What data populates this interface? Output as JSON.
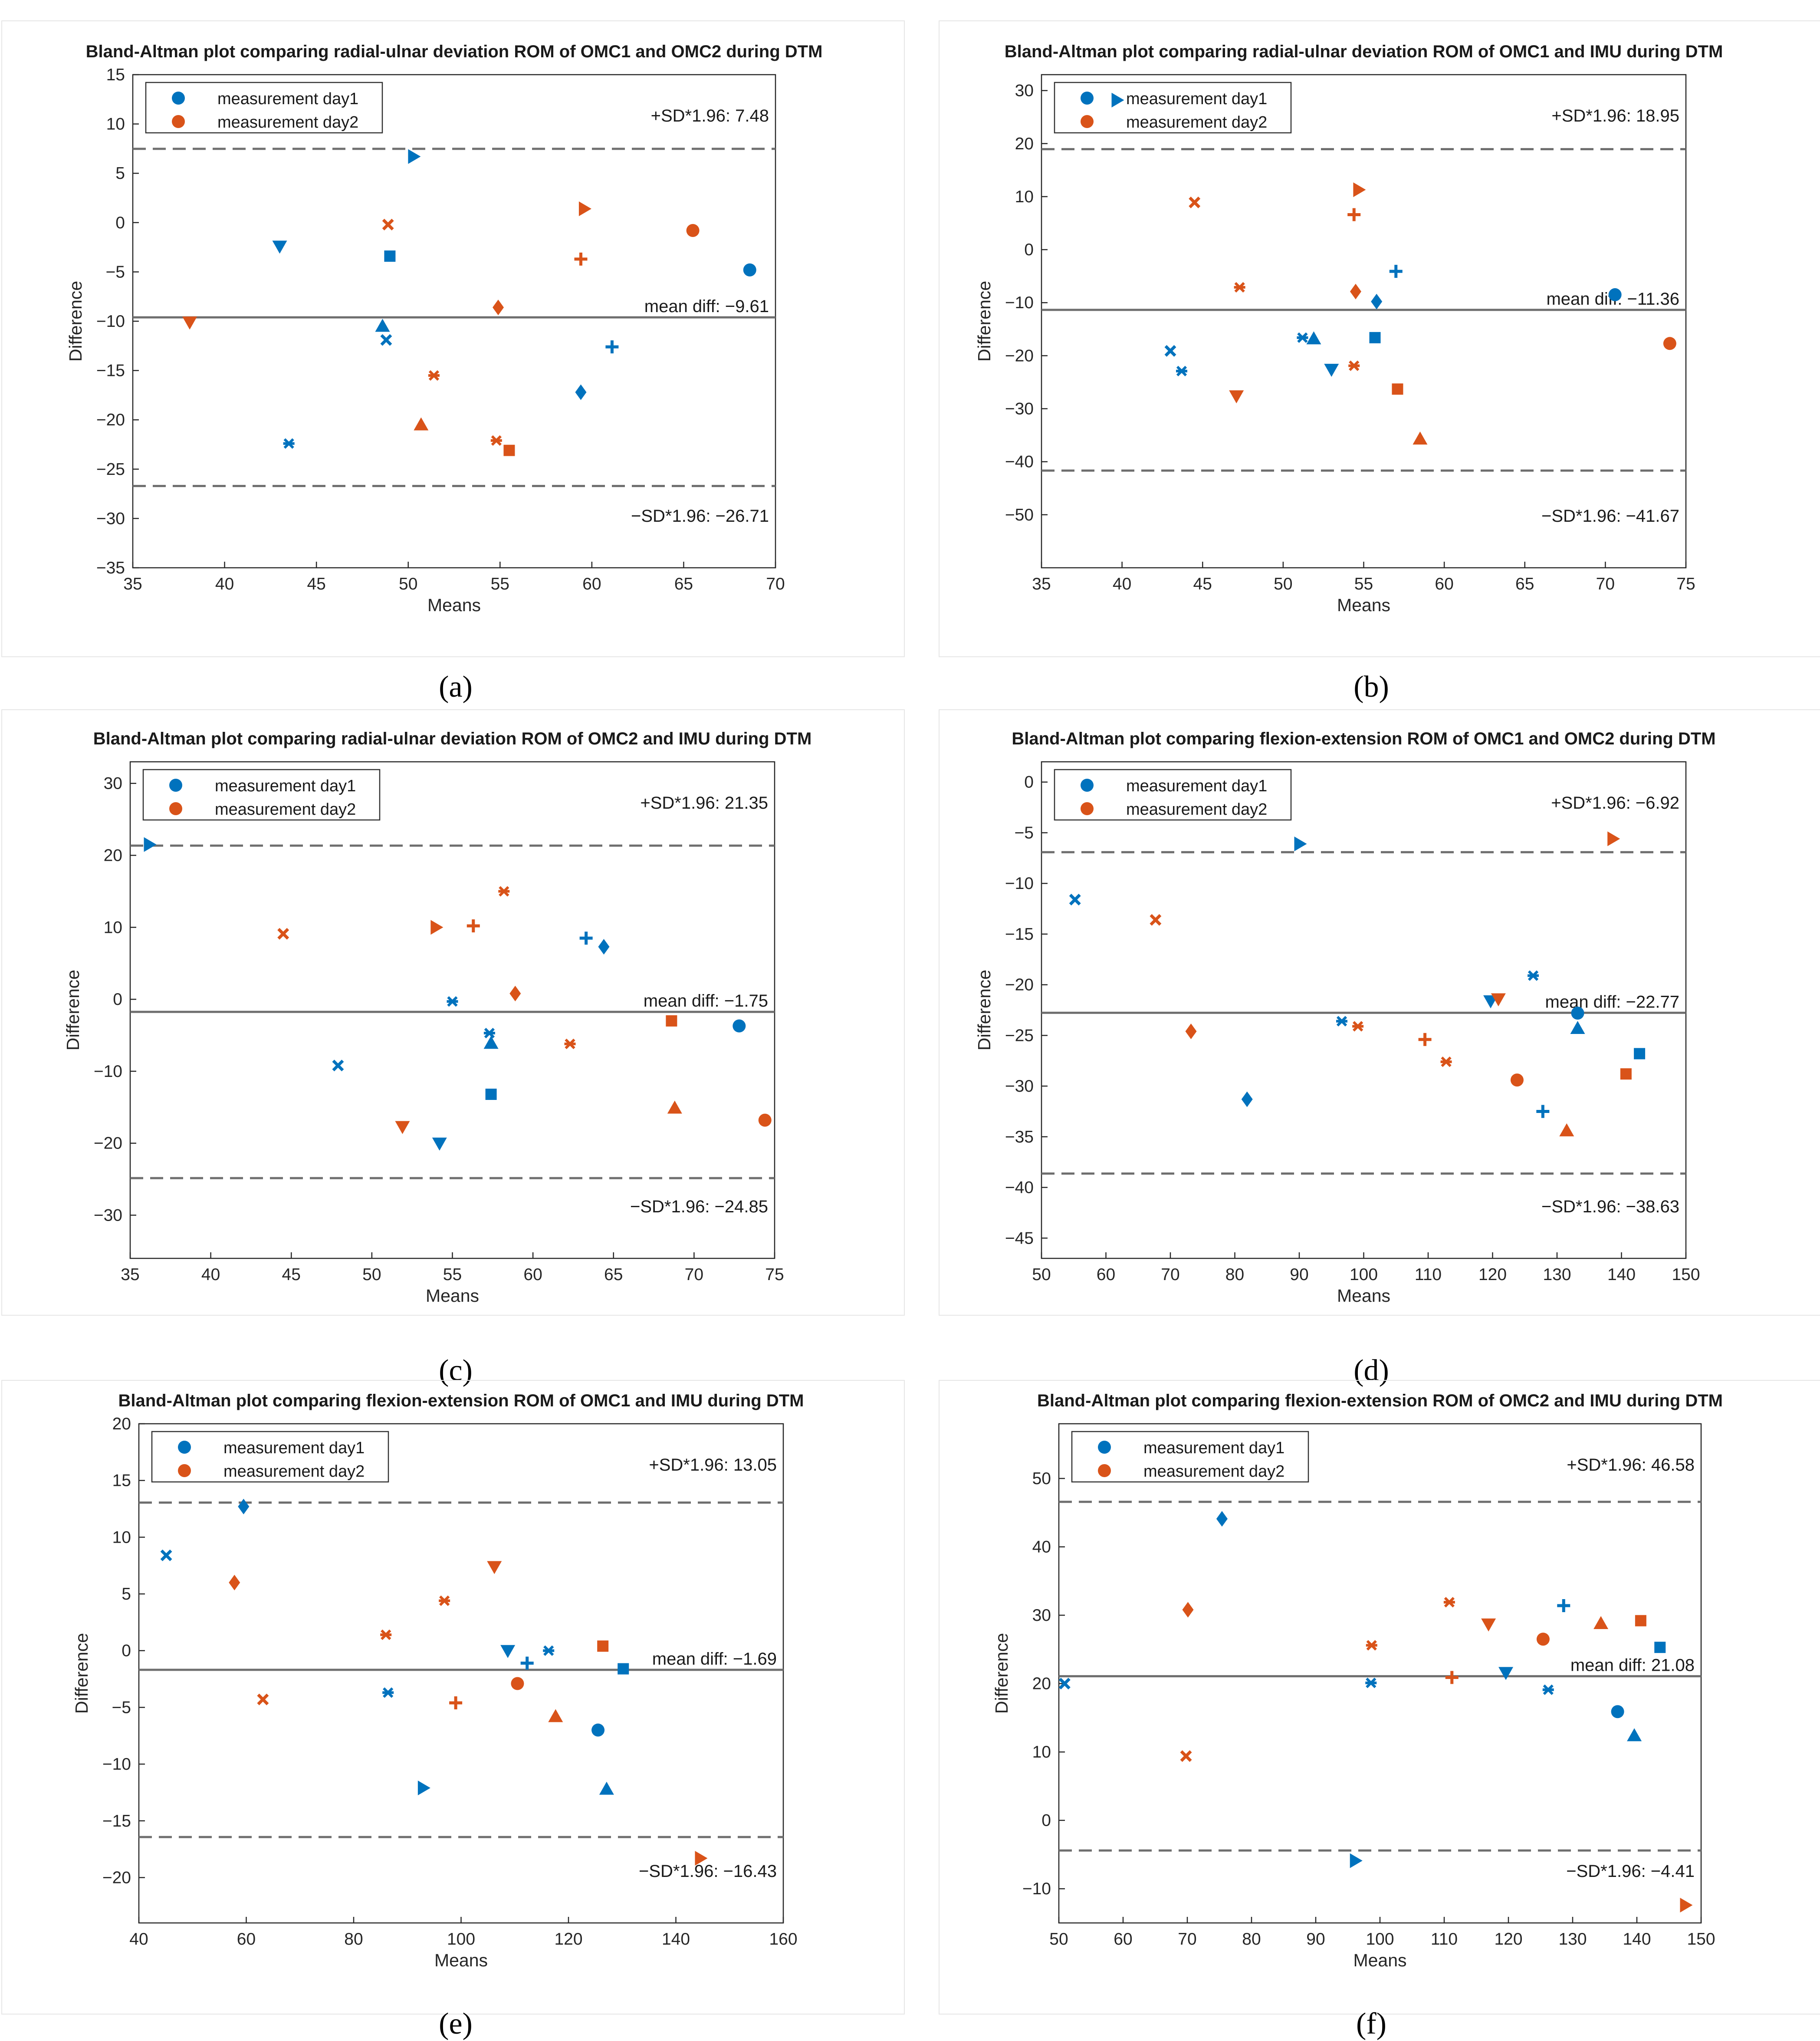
{
  "colors": {
    "day1": "#0072BD",
    "day2": "#D95319",
    "line": "#6e6e6e",
    "axis": "#262626"
  },
  "legend": {
    "day1": "measurement day1",
    "day2": "measurement day2"
  },
  "xlabel": "Means",
  "ylabel": "Difference",
  "chart_data": [
    {
      "id": "a",
      "caption": "(a)",
      "type": "scatter",
      "title": "Bland-Altman plot comparing radial-ulnar deviation ROM of OMC1 and OMC2 during DTM",
      "xlim": [
        35,
        70
      ],
      "ylim": [
        -35,
        15
      ],
      "xticks": [
        35,
        40,
        45,
        50,
        55,
        60,
        65,
        70
      ],
      "yticks": [
        15,
        10,
        5,
        0,
        -5,
        -10,
        -15,
        -20,
        -25,
        -30,
        -35
      ],
      "upper_label": "+SD*1.96: 7.48",
      "upper": 7.48,
      "mean_label": "mean diff: −9.61",
      "mean": -9.61,
      "lower_label": "−SD*1.96: −26.71",
      "lower": -26.71,
      "series": [
        {
          "name": "measurement day1",
          "points": [
            {
              "x": 68.6,
              "y": -4.8,
              "m": "o"
            },
            {
              "x": 49.0,
              "y": -3.4,
              "m": "s"
            },
            {
              "x": 59.4,
              "y": -17.2,
              "m": "d"
            },
            {
              "x": 61.1,
              "y": -12.6,
              "m": "+"
            },
            {
              "x": 48.8,
              "y": -11.9,
              "m": "x"
            },
            {
              "x": 43.5,
              "y": -22.4,
              "m": "*"
            },
            {
              "x": 48.6,
              "y": -10.5,
              "m": "^"
            },
            {
              "x": 43.0,
              "y": -2.4,
              "m": "v"
            },
            {
              "x": 50.3,
              "y": 6.7,
              "m": ">"
            }
          ]
        },
        {
          "name": "measurement day2",
          "points": [
            {
              "x": 65.5,
              "y": -0.8,
              "m": "o"
            },
            {
              "x": 55.5,
              "y": -23.1,
              "m": "s"
            },
            {
              "x": 54.9,
              "y": -8.6,
              "m": "d"
            },
            {
              "x": 59.4,
              "y": -3.7,
              "m": "+"
            },
            {
              "x": 48.9,
              "y": -0.2,
              "m": "x"
            },
            {
              "x": 51.4,
              "y": -15.5,
              "m": "*"
            },
            {
              "x": 50.7,
              "y": -20.5,
              "m": "^"
            },
            {
              "x": 38.1,
              "y": -10.1,
              "m": "v"
            },
            {
              "x": 59.6,
              "y": 1.4,
              "m": ">"
            },
            {
              "x": 54.8,
              "y": -22.1,
              "m": "*"
            }
          ]
        }
      ]
    },
    {
      "id": "b",
      "caption": "(b)",
      "type": "scatter",
      "title": "Bland-Altman plot comparing radial-ulnar deviation ROM of OMC1 and IMU during DTM",
      "xlim": [
        35,
        75
      ],
      "ylim": [
        -60,
        33
      ],
      "xticks": [
        35,
        40,
        45,
        50,
        55,
        60,
        65,
        70,
        75
      ],
      "yticks": [
        30,
        20,
        10,
        0,
        -10,
        -20,
        -30,
        -40,
        -50
      ],
      "upper_label": "+SD*1.96: 18.95",
      "upper": 18.95,
      "mean_label": "mean diff: −11.36",
      "mean": -11.36,
      "lower_label": "−SD*1.96: −41.67",
      "lower": -41.67,
      "series": [
        {
          "name": "measurement day1",
          "points": [
            {
              "x": 70.6,
              "y": -8.5,
              "m": "o"
            },
            {
              "x": 55.7,
              "y": -16.6,
              "m": "s"
            },
            {
              "x": 55.8,
              "y": -9.8,
              "m": "d"
            },
            {
              "x": 57.0,
              "y": -4.1,
              "m": "+"
            },
            {
              "x": 43.0,
              "y": -19.1,
              "m": "x"
            },
            {
              "x": 43.7,
              "y": -22.9,
              "m": "*"
            },
            {
              "x": 51.9,
              "y": -16.8,
              "m": "^"
            },
            {
              "x": 53.0,
              "y": -22.6,
              "m": "v"
            },
            {
              "x": 39.7,
              "y": 28.2,
              "m": ">"
            },
            {
              "x": 51.2,
              "y": -16.6,
              "m": "*"
            }
          ]
        },
        {
          "name": "measurement day2",
          "points": [
            {
              "x": 74.0,
              "y": -17.7,
              "m": "o"
            },
            {
              "x": 57.1,
              "y": -26.3,
              "m": "s"
            },
            {
              "x": 54.5,
              "y": -7.9,
              "m": "d"
            },
            {
              "x": 54.4,
              "y": 6.6,
              "m": "+"
            },
            {
              "x": 44.5,
              "y": 8.9,
              "m": "x"
            },
            {
              "x": 47.3,
              "y": -7.1,
              "m": "*"
            },
            {
              "x": 58.5,
              "y": -35.7,
              "m": "^"
            },
            {
              "x": 47.1,
              "y": -27.6,
              "m": "v"
            },
            {
              "x": 54.7,
              "y": 11.3,
              "m": ">"
            },
            {
              "x": 54.4,
              "y": -21.9,
              "m": "*"
            }
          ]
        }
      ]
    },
    {
      "id": "c",
      "caption": "(c)",
      "type": "scatter",
      "title": "Bland-Altman plot comparing radial-ulnar deviation ROM of OMC2 and IMU during DTM",
      "xlim": [
        35,
        75
      ],
      "ylim": [
        -36,
        33
      ],
      "xticks": [
        35,
        40,
        45,
        50,
        55,
        60,
        65,
        70,
        75
      ],
      "yticks": [
        30,
        20,
        10,
        0,
        -10,
        -20,
        -30
      ],
      "upper_label": "+SD*1.96: 21.35",
      "upper": 21.35,
      "mean_label": "mean diff: −1.75",
      "mean": -1.75,
      "lower_label": "−SD*1.96: −24.85",
      "lower": -24.85,
      "series": [
        {
          "name": "measurement day1",
          "points": [
            {
              "x": 72.8,
              "y": -3.7,
              "m": "o"
            },
            {
              "x": 57.4,
              "y": -13.2,
              "m": "s"
            },
            {
              "x": 64.4,
              "y": 7.3,
              "m": "d"
            },
            {
              "x": 63.3,
              "y": 8.5,
              "m": "+"
            },
            {
              "x": 47.9,
              "y": -9.2,
              "m": "x"
            },
            {
              "x": 55.0,
              "y": -0.3,
              "m": "*"
            },
            {
              "x": 57.4,
              "y": -6.1,
              "m": "^"
            },
            {
              "x": 54.2,
              "y": -20.0,
              "m": "v"
            },
            {
              "x": 36.2,
              "y": 21.5,
              "m": ">"
            },
            {
              "x": 57.3,
              "y": -4.7,
              "m": "*"
            }
          ]
        },
        {
          "name": "measurement day2",
          "points": [
            {
              "x": 74.4,
              "y": -16.8,
              "m": "o"
            },
            {
              "x": 68.6,
              "y": -3.0,
              "m": "s"
            },
            {
              "x": 58.9,
              "y": 0.8,
              "m": "d"
            },
            {
              "x": 56.3,
              "y": 10.2,
              "m": "+"
            },
            {
              "x": 44.5,
              "y": 9.1,
              "m": "x"
            },
            {
              "x": 58.2,
              "y": 15.0,
              "m": "*"
            },
            {
              "x": 68.8,
              "y": -15.1,
              "m": "^"
            },
            {
              "x": 51.9,
              "y": -17.7,
              "m": "v"
            },
            {
              "x": 54.0,
              "y": 10.0,
              "m": ">"
            },
            {
              "x": 62.3,
              "y": -6.2,
              "m": "*"
            }
          ]
        }
      ]
    },
    {
      "id": "d",
      "caption": "(d)",
      "type": "scatter",
      "title": "Bland-Altman plot comparing flexion-extension ROM of OMC1 and OMC2 during DTM",
      "xlim": [
        50,
        150
      ],
      "ylim": [
        -47,
        2
      ],
      "xticks": [
        50,
        60,
        70,
        80,
        90,
        100,
        110,
        120,
        130,
        140,
        150
      ],
      "yticks": [
        0,
        -5,
        -10,
        -15,
        -20,
        -25,
        -30,
        -35,
        -40,
        -45
      ],
      "upper_label": "+SD*1.96: −6.92",
      "upper": -6.92,
      "mean_label": "mean diff: −22.77",
      "mean": -22.77,
      "lower_label": "−SD*1.96: −38.63",
      "lower": -38.63,
      "series": [
        {
          "name": "measurement day1",
          "points": [
            {
              "x": 133.2,
              "y": -22.8,
              "m": "o"
            },
            {
              "x": 142.8,
              "y": -26.8,
              "m": "s"
            },
            {
              "x": 81.9,
              "y": -31.3,
              "m": "d"
            },
            {
              "x": 127.8,
              "y": -32.5,
              "m": "+"
            },
            {
              "x": 55.2,
              "y": -11.6,
              "m": "x"
            },
            {
              "x": 126.3,
              "y": -19.1,
              "m": "*"
            },
            {
              "x": 133.2,
              "y": -24.3,
              "m": "^"
            },
            {
              "x": 119.7,
              "y": -21.6,
              "m": "v"
            },
            {
              "x": 90.1,
              "y": -6.1,
              "m": ">"
            },
            {
              "x": 96.6,
              "y": -23.6,
              "m": "*"
            }
          ]
        },
        {
          "name": "measurement day2",
          "points": [
            {
              "x": 123.8,
              "y": -29.4,
              "m": "o"
            },
            {
              "x": 140.7,
              "y": -28.8,
              "m": "s"
            },
            {
              "x": 73.2,
              "y": -24.6,
              "m": "d"
            },
            {
              "x": 109.5,
              "y": -25.4,
              "m": "+"
            },
            {
              "x": 67.7,
              "y": -13.6,
              "m": "x"
            },
            {
              "x": 112.8,
              "y": -27.6,
              "m": "*"
            },
            {
              "x": 131.5,
              "y": -34.4,
              "m": "^"
            },
            {
              "x": 120.9,
              "y": -21.4,
              "m": "v"
            },
            {
              "x": 138.7,
              "y": -5.6,
              "m": ">"
            },
            {
              "x": 99.1,
              "y": -24.1,
              "m": "*"
            }
          ]
        }
      ]
    },
    {
      "id": "e",
      "caption": "(e)",
      "type": "scatter",
      "title": "Bland-Altman plot comparing flexion-extension ROM of OMC1 and IMU during DTM",
      "xlim": [
        40,
        160
      ],
      "ylim": [
        -24,
        20
      ],
      "xticks": [
        40,
        60,
        80,
        100,
        120,
        140,
        160
      ],
      "yticks": [
        20,
        15,
        10,
        5,
        0,
        -5,
        -10,
        -15,
        -20
      ],
      "upper_label": "+SD*1.96: 13.05",
      "upper": 13.05,
      "mean_label": "mean diff: −1.69",
      "mean": -1.69,
      "lower_label": "−SD*1.96: −16.43",
      "lower": -16.43,
      "series": [
        {
          "name": "measurement day1",
          "points": [
            {
              "x": 125.5,
              "y": -7.0,
              "m": "o"
            },
            {
              "x": 130.2,
              "y": -1.6,
              "m": "s"
            },
            {
              "x": 59.5,
              "y": 12.7,
              "m": "d"
            },
            {
              "x": 112.3,
              "y": -1.1,
              "m": "+"
            },
            {
              "x": 45.1,
              "y": 8.4,
              "m": "x"
            },
            {
              "x": 116.3,
              "y": 0.0,
              "m": "*"
            },
            {
              "x": 127.1,
              "y": -12.2,
              "m": "^"
            },
            {
              "x": 108.7,
              "y": 0.0,
              "m": "v"
            },
            {
              "x": 93.0,
              "y": -12.1,
              "m": ">"
            },
            {
              "x": 86.4,
              "y": -3.7,
              "m": "*"
            }
          ]
        },
        {
          "name": "measurement day2",
          "points": [
            {
              "x": 110.5,
              "y": -2.9,
              "m": "o"
            },
            {
              "x": 126.4,
              "y": 0.4,
              "m": "s"
            },
            {
              "x": 57.8,
              "y": 6.0,
              "m": "d"
            },
            {
              "x": 99.0,
              "y": -4.6,
              "m": "+"
            },
            {
              "x": 63.1,
              "y": -4.3,
              "m": "x"
            },
            {
              "x": 96.9,
              "y": 4.4,
              "m": "*"
            },
            {
              "x": 117.6,
              "y": -5.8,
              "m": "^"
            },
            {
              "x": 106.2,
              "y": 7.4,
              "m": "v"
            },
            {
              "x": 144.6,
              "y": -18.3,
              "m": ">"
            },
            {
              "x": 86.0,
              "y": 1.4,
              "m": "*"
            }
          ]
        }
      ]
    },
    {
      "id": "f",
      "caption": "(f)",
      "type": "scatter",
      "title": "Bland-Altman plot comparing flexion-extension ROM of OMC2 and IMU during DTM",
      "xlim": [
        50,
        150
      ],
      "ylim": [
        -15,
        58
      ],
      "xticks": [
        50,
        60,
        70,
        80,
        90,
        100,
        110,
        120,
        130,
        140,
        150
      ],
      "yticks": [
        50,
        40,
        30,
        20,
        10,
        0,
        -10
      ],
      "upper_label": "+SD*1.96: 46.58",
      "upper": 46.58,
      "mean_label": "mean diff: 21.08",
      "mean": 21.08,
      "lower_label": "−SD*1.96: −4.41",
      "lower": -4.41,
      "series": [
        {
          "name": "measurement day1",
          "points": [
            {
              "x": 137.0,
              "y": 15.9,
              "m": "o"
            },
            {
              "x": 143.6,
              "y": 25.3,
              "m": "s"
            },
            {
              "x": 75.4,
              "y": 44.1,
              "m": "d"
            },
            {
              "x": 128.6,
              "y": 31.4,
              "m": "+"
            },
            {
              "x": 50.9,
              "y": 20.0,
              "m": "x"
            },
            {
              "x": 126.2,
              "y": 19.1,
              "m": "*"
            },
            {
              "x": 139.6,
              "y": 12.4,
              "m": "^"
            },
            {
              "x": 119.6,
              "y": 21.6,
              "m": "v"
            },
            {
              "x": 96.2,
              "y": -5.9,
              "m": ">"
            },
            {
              "x": 98.6,
              "y": 20.1,
              "m": "*"
            }
          ]
        },
        {
          "name": "measurement day2",
          "points": [
            {
              "x": 125.4,
              "y": 26.5,
              "m": "o"
            },
            {
              "x": 140.6,
              "y": 29.2,
              "m": "s"
            },
            {
              "x": 70.1,
              "y": 30.8,
              "m": "d"
            },
            {
              "x": 111.2,
              "y": 20.9,
              "m": "+"
            },
            {
              "x": 69.8,
              "y": 9.4,
              "m": "x"
            },
            {
              "x": 110.8,
              "y": 31.9,
              "m": "*"
            },
            {
              "x": 134.4,
              "y": 28.8,
              "m": "^"
            },
            {
              "x": 116.9,
              "y": 28.7,
              "m": "v"
            },
            {
              "x": 147.6,
              "y": -12.4,
              "m": ">"
            },
            {
              "x": 98.7,
              "y": 25.6,
              "m": "*"
            }
          ]
        }
      ]
    }
  ]
}
